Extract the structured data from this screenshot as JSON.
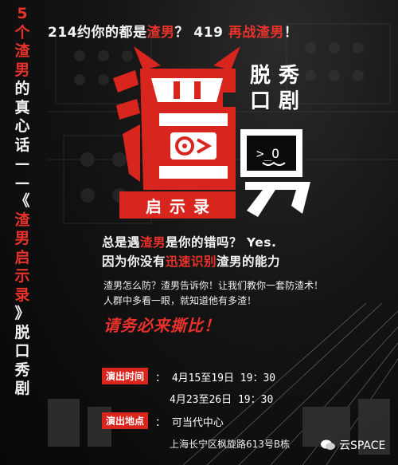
{
  "sidebar": {
    "chars": [
      {
        "t": "5",
        "c": "red"
      },
      {
        "t": "个",
        "c": "red"
      },
      {
        "t": "渣",
        "c": "red"
      },
      {
        "t": "男",
        "c": "red"
      },
      {
        "t": "的",
        "c": "white"
      },
      {
        "t": "真",
        "c": "white"
      },
      {
        "t": "心",
        "c": "white"
      },
      {
        "t": "话",
        "c": "white"
      },
      {
        "t": "—",
        "c": "white"
      },
      {
        "t": "—",
        "c": "white"
      },
      {
        "t": "《",
        "c": "white"
      },
      {
        "t": "渣",
        "c": "red"
      },
      {
        "t": "男",
        "c": "red"
      },
      {
        "t": "启",
        "c": "red"
      },
      {
        "t": "示",
        "c": "red"
      },
      {
        "t": "录",
        "c": "red"
      },
      {
        "t": "》",
        "c": "white"
      },
      {
        "t": "脱",
        "c": "white"
      },
      {
        "t": "口",
        "c": "white"
      },
      {
        "t": "秀",
        "c": "white"
      },
      {
        "t": "剧",
        "c": "white"
      }
    ]
  },
  "headline": {
    "p1": "214约你的都是",
    "r1": "渣男",
    "p2": "？ 419 ",
    "r2": "再战渣男",
    "p3": "！"
  },
  "logo": {
    "badge": "启示录",
    "tuokou": [
      "脱",
      "秀",
      "口",
      "剧"
    ]
  },
  "body": {
    "l1a": "总是遇",
    "l1r": "渣男",
    "l1b": "是你的错吗？ Yes.",
    "l2a": "因为你没有",
    "l2r": "迅速识别",
    "l2b": "渣男的能力",
    "small1": "渣男怎么防？渣男告诉你！让我们教你一套防渣术！",
    "small2": "人群中多看一眼，就知道他有多渣！",
    "cta": "请务必来撕比！"
  },
  "info": {
    "time_label": "演出时间",
    "time1": "： 4月15至19日  19：30",
    "time2": "4月23至26日  19：30",
    "venue_label": "演出地点",
    "venue": "： 可当代中心",
    "address": "上海长宁区枫旋路613号B栋"
  },
  "watermark": {
    "text": "云SPACE"
  },
  "colors": {
    "accent": "#e8322b",
    "badge": "#d8261f",
    "background": "#0b0b0b"
  }
}
